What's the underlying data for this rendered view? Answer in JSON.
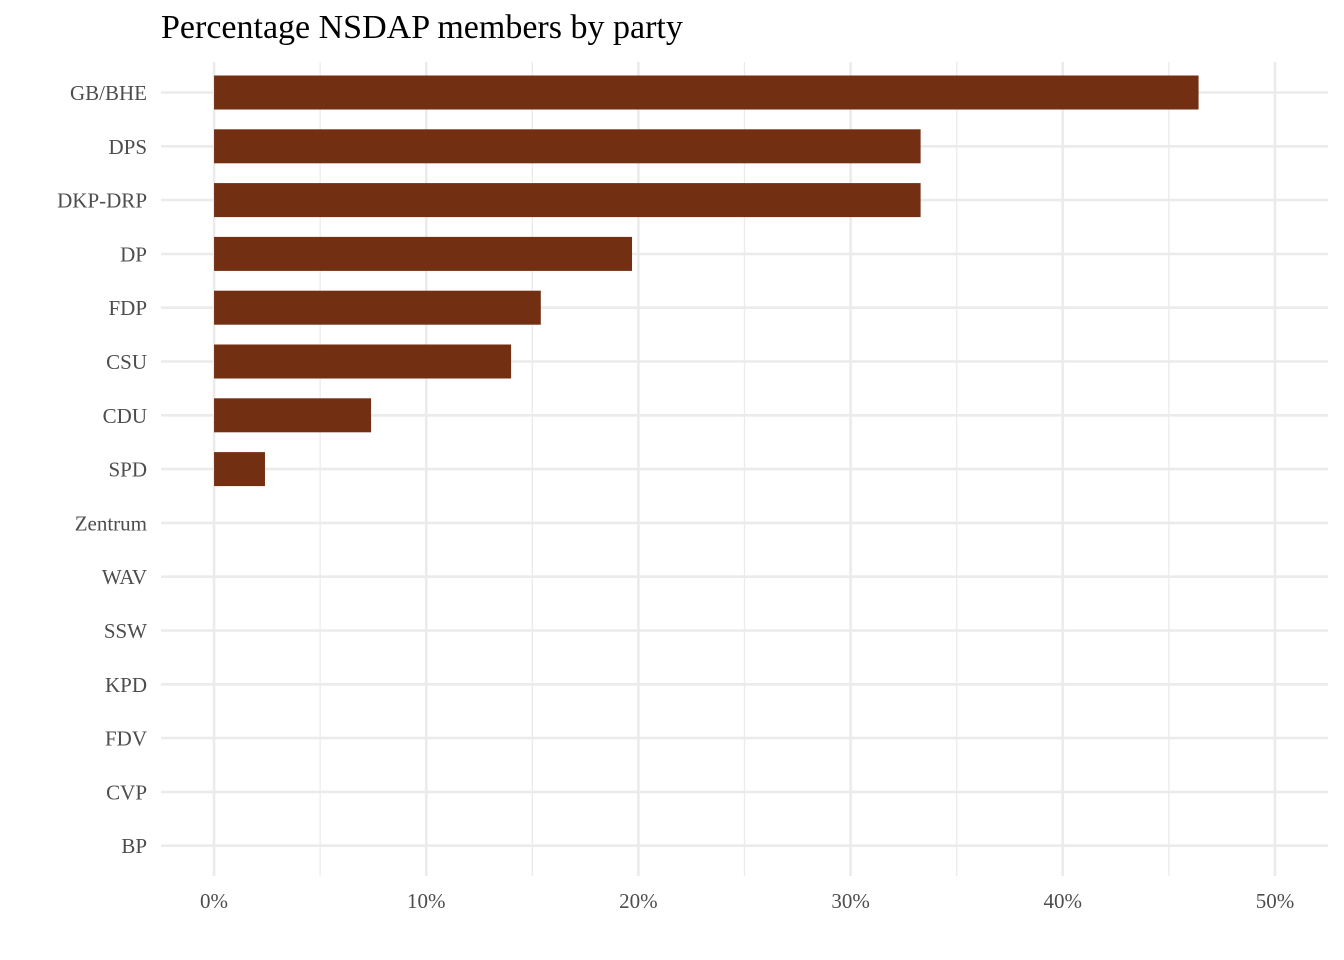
{
  "chart_data": {
    "type": "bar",
    "orientation": "horizontal",
    "title": "Percentage NSDAP members by party",
    "xlabel": "",
    "ylabel": "",
    "categories": [
      "GB/BHE",
      "DPS",
      "DKP-DRP",
      "DP",
      "FDP",
      "CSU",
      "CDU",
      "SPD",
      "Zentrum",
      "WAV",
      "SSW",
      "KPD",
      "FDV",
      "CVP",
      "BP"
    ],
    "values": [
      46.4,
      33.3,
      33.3,
      19.7,
      15.4,
      14.0,
      7.4,
      2.4,
      0,
      0,
      0,
      0,
      0,
      0,
      0
    ],
    "xlim": [
      -2.5,
      52.5
    ],
    "x_ticks": [
      0,
      10,
      20,
      30,
      40,
      50
    ],
    "x_tick_labels": [
      "0%",
      "10%",
      "20%",
      "30%",
      "40%",
      "50%"
    ],
    "x_minor_ticks": [
      5,
      15,
      25,
      35,
      45
    ],
    "bar_color": "#732f12",
    "grid": true,
    "legend": "none"
  }
}
